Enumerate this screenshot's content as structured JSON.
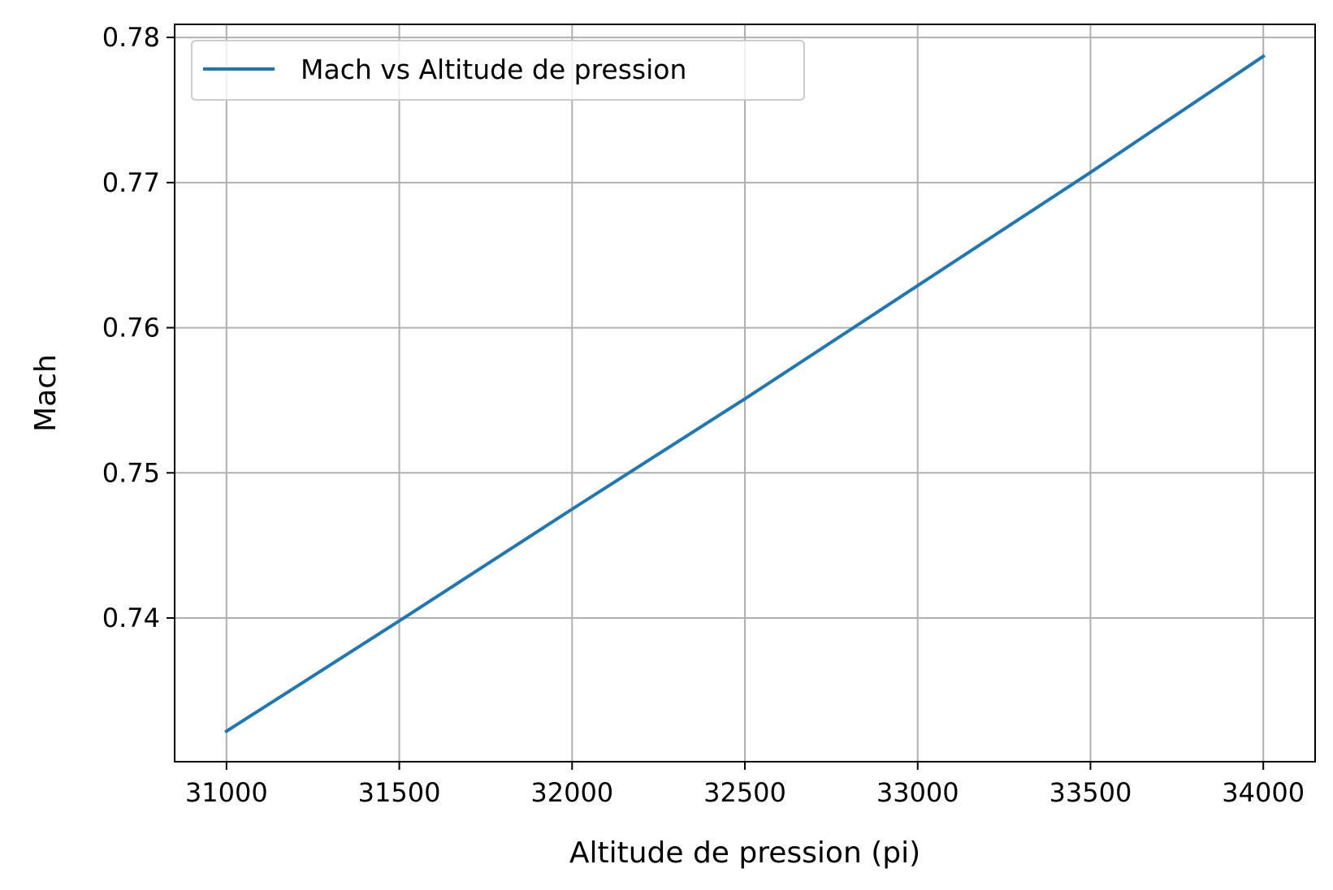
{
  "chart_data": {
    "type": "line",
    "title": "",
    "xlabel": "Altitude de pression (pi)",
    "ylabel": "Mach",
    "xlim": [
      30850,
      34150
    ],
    "ylim": [
      0.7301,
      0.7809
    ],
    "xticks": [
      31000,
      31500,
      32000,
      32500,
      33000,
      33500,
      34000
    ],
    "xtick_labels": [
      "31000",
      "31500",
      "32000",
      "32500",
      "33000",
      "33500",
      "34000"
    ],
    "yticks": [
      0.74,
      0.75,
      0.76,
      0.77,
      0.78
    ],
    "ytick_labels": [
      "0.74",
      "0.75",
      "0.76",
      "0.77",
      "0.78"
    ],
    "grid": true,
    "legend_position": "top-left",
    "series": [
      {
        "name": "Mach vs Altitude de pression",
        "color": "#1f77b4",
        "x": [
          31000,
          31500,
          32000,
          32500,
          33000,
          33500,
          34000
        ],
        "y": [
          0.7322,
          0.7398,
          0.7475,
          0.7551,
          0.7629,
          0.7707,
          0.7787
        ]
      }
    ]
  }
}
